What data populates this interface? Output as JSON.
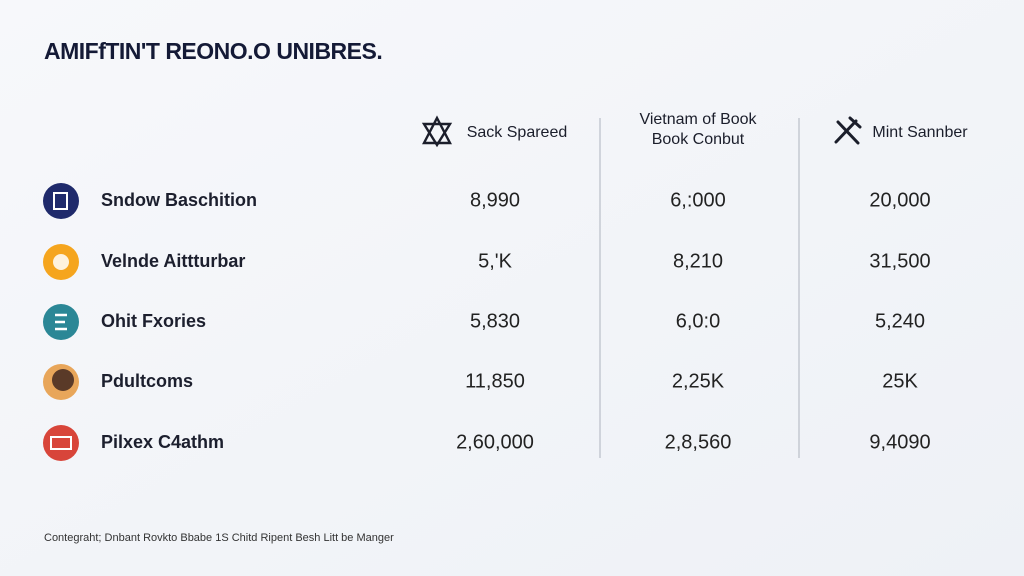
{
  "title": "AMIFfTIN'T REONO.O UNIBRES.",
  "table": {
    "headers": [
      {
        "label": "Sack Spareed"
      },
      {
        "label": "Vietnam of Book",
        "sublabel": "Book Conbut"
      },
      {
        "label": "Mint Sannber"
      }
    ],
    "rows": [
      {
        "name": "Sndow Baschition",
        "values": [
          "8,990",
          "6,:000",
          "20,000"
        ]
      },
      {
        "name": "Velnde Aittturbar",
        "values": [
          "5,'K",
          "8,210",
          "31,500"
        ]
      },
      {
        "name": "Ohit Fxories",
        "values": [
          "5,830",
          "6,0:0",
          "5,240"
        ]
      },
      {
        "name": "Pdultcoms",
        "values": [
          "11,850",
          "2,25K",
          "25K"
        ]
      },
      {
        "name": "Pilxex C4athm",
        "values": [
          "2,60,000",
          "2,8,560",
          "9,4090"
        ]
      }
    ]
  },
  "footer": "Contegraht; Dnbant Rovkto Bbabe 1S Chitd Ripent Besh Litt be Manger"
}
